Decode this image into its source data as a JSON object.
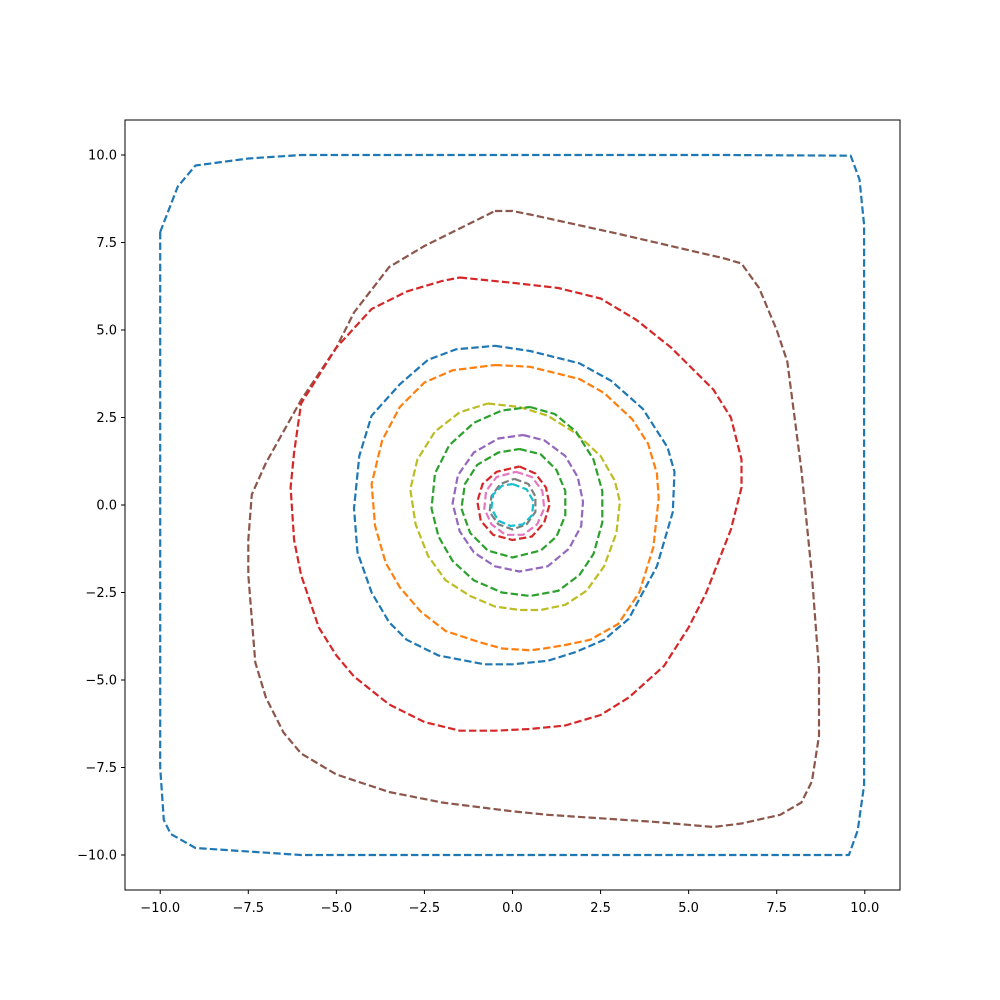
{
  "chart_data": {
    "type": "line",
    "title": "",
    "xlabel": "",
    "ylabel": "",
    "xlim": [
      -11,
      11
    ],
    "ylim": [
      -11,
      11
    ],
    "xticks": [
      -10,
      -7.5,
      -5,
      -2.5,
      0,
      2.5,
      5,
      7.5,
      10
    ],
    "yticks": [
      -10,
      -7.5,
      -5,
      -2.5,
      0,
      2.5,
      5,
      7.5,
      10
    ],
    "xtick_labels": [
      "−10.0",
      "−7.5",
      "−5.0",
      "−2.5",
      "0.0",
      "2.5",
      "5.0",
      "7.5",
      "10.0"
    ],
    "ytick_labels": [
      "−10.0",
      "−7.5",
      "−5.0",
      "−2.5",
      "0.0",
      "2.5",
      "5.0",
      "7.5",
      "10.0"
    ],
    "grid": false,
    "legend": "none",
    "line_style": "dashed",
    "series": [
      {
        "color": "#1f77b4",
        "points": [
          [
            -10,
            7.8
          ],
          [
            -9.5,
            9.1
          ],
          [
            -9.0,
            9.7
          ],
          [
            -7.5,
            9.9
          ],
          [
            -6.0,
            10.0
          ],
          [
            0,
            10.0
          ],
          [
            6.0,
            10.0
          ],
          [
            9.6,
            9.98
          ],
          [
            9.85,
            9.3
          ],
          [
            9.98,
            8.0
          ],
          [
            9.98,
            0
          ],
          [
            9.98,
            -8.0
          ],
          [
            9.8,
            -9.3
          ],
          [
            9.55,
            -10.0
          ],
          [
            6.0,
            -10.0
          ],
          [
            0,
            -10.0
          ],
          [
            -6.0,
            -10.0
          ],
          [
            -9.0,
            -9.8
          ],
          [
            -9.7,
            -9.4
          ],
          [
            -9.9,
            -9.0
          ],
          [
            -10,
            -7.5
          ],
          [
            -10,
            0
          ],
          [
            -10,
            7.8
          ]
        ]
      },
      {
        "color": "#8c564b",
        "points": [
          [
            -0.5,
            8.4
          ],
          [
            0,
            8.4
          ],
          [
            0.5,
            8.3
          ],
          [
            3,
            7.75
          ],
          [
            6,
            7.05
          ],
          [
            6.5,
            6.9
          ],
          [
            7,
            6.2
          ],
          [
            7.5,
            5
          ],
          [
            7.8,
            4.1
          ],
          [
            8.2,
            1
          ],
          [
            8.5,
            -2
          ],
          [
            8.7,
            -4.7
          ],
          [
            8.7,
            -6.6
          ],
          [
            8.5,
            -7.9
          ],
          [
            8.2,
            -8.5
          ],
          [
            7.6,
            -8.85
          ],
          [
            6.5,
            -9.1
          ],
          [
            5.7,
            -9.2
          ],
          [
            4,
            -9.05
          ],
          [
            1,
            -8.85
          ],
          [
            0,
            -8.75
          ],
          [
            -2,
            -8.5
          ],
          [
            -3.5,
            -8.2
          ],
          [
            -5,
            -7.7
          ],
          [
            -6,
            -7.1
          ],
          [
            -6.5,
            -6.5
          ],
          [
            -7,
            -5.5
          ],
          [
            -7.3,
            -4.5
          ],
          [
            -7.5,
            -2
          ],
          [
            -7.5,
            -1
          ],
          [
            -7.4,
            0.3
          ],
          [
            -7,
            1.2
          ],
          [
            -6,
            3
          ],
          [
            -5.0,
            4.5
          ],
          [
            -4.5,
            5.5
          ],
          [
            -3.5,
            6.8
          ],
          [
            -2.5,
            7.4
          ],
          [
            -1.5,
            7.9
          ],
          [
            -0.5,
            8.4
          ]
        ]
      },
      {
        "color": "#d62728",
        "points": [
          [
            -1.5,
            6.5
          ],
          [
            0,
            6.35
          ],
          [
            1.3,
            6.2
          ],
          [
            2.5,
            5.9
          ],
          [
            3.5,
            5.3
          ],
          [
            4.5,
            4.5
          ],
          [
            5.7,
            3.3
          ],
          [
            6.2,
            2.5
          ],
          [
            6.5,
            1.3
          ],
          [
            6.5,
            0.5
          ],
          [
            6.2,
            -0.7
          ],
          [
            5.5,
            -2.5
          ],
          [
            5,
            -3.5
          ],
          [
            4.3,
            -4.6
          ],
          [
            3.3,
            -5.5
          ],
          [
            2.5,
            -6
          ],
          [
            1.5,
            -6.3
          ],
          [
            0.5,
            -6.4
          ],
          [
            -0.5,
            -6.45
          ],
          [
            -1.5,
            -6.45
          ],
          [
            -2.5,
            -6.2
          ],
          [
            -3.5,
            -5.7
          ],
          [
            -4.5,
            -4.9
          ],
          [
            -5.0,
            -4.3
          ],
          [
            -5.5,
            -3.5
          ],
          [
            -6.0,
            -2.0
          ],
          [
            -6.2,
            -1.0
          ],
          [
            -6.3,
            0.5
          ],
          [
            -6.2,
            1.5
          ],
          [
            -6.0,
            2.9
          ],
          [
            -5.5,
            3.7
          ],
          [
            -5.0,
            4.5
          ],
          [
            -4.0,
            5.6
          ],
          [
            -3.0,
            6.1
          ],
          [
            -2.0,
            6.4
          ],
          [
            -1.5,
            6.5
          ]
        ]
      },
      {
        "color": "#1f77b4",
        "points": [
          [
            -0.5,
            4.55
          ],
          [
            0.5,
            4.4
          ],
          [
            1.9,
            4.05
          ],
          [
            2.8,
            3.55
          ],
          [
            3.7,
            2.75
          ],
          [
            4.4,
            1.65
          ],
          [
            4.6,
            0.95
          ],
          [
            4.55,
            -0.2
          ],
          [
            4.1,
            -1.75
          ],
          [
            3.3,
            -3.25
          ],
          [
            2.6,
            -3.85
          ],
          [
            1.8,
            -4.2
          ],
          [
            1.0,
            -4.45
          ],
          [
            0,
            -4.55
          ],
          [
            -0.8,
            -4.55
          ],
          [
            -2.1,
            -4.3
          ],
          [
            -3.0,
            -3.85
          ],
          [
            -3.5,
            -3.35
          ],
          [
            -4.0,
            -2.5
          ],
          [
            -4.4,
            -1.35
          ],
          [
            -4.5,
            -0.1
          ],
          [
            -4.35,
            1.4
          ],
          [
            -4.0,
            2.55
          ],
          [
            -3.2,
            3.45
          ],
          [
            -2.4,
            4.15
          ],
          [
            -1.6,
            4.45
          ],
          [
            -0.5,
            4.55
          ]
        ]
      },
      {
        "color": "#ff7f0e",
        "points": [
          [
            -0.5,
            4.0
          ],
          [
            0.5,
            3.95
          ],
          [
            1.9,
            3.6
          ],
          [
            2.6,
            3.2
          ],
          [
            3.4,
            2.45
          ],
          [
            3.85,
            1.75
          ],
          [
            4.1,
            0.9
          ],
          [
            4.15,
            0.2
          ],
          [
            4.0,
            -1.2
          ],
          [
            3.6,
            -2.5
          ],
          [
            3.0,
            -3.4
          ],
          [
            2.2,
            -3.85
          ],
          [
            1.5,
            -4.0
          ],
          [
            0.9,
            -4.1
          ],
          [
            0.5,
            -4.15
          ],
          [
            -0.3,
            -4.1
          ],
          [
            -1.0,
            -3.9
          ],
          [
            -1.9,
            -3.6
          ],
          [
            -2.6,
            -3.05
          ],
          [
            -3.2,
            -2.35
          ],
          [
            -3.6,
            -1.65
          ],
          [
            -3.9,
            -0.6
          ],
          [
            -4.0,
            0.6
          ],
          [
            -3.7,
            1.85
          ],
          [
            -3.2,
            2.8
          ],
          [
            -2.5,
            3.5
          ],
          [
            -1.7,
            3.85
          ],
          [
            -0.5,
            4.0
          ]
        ]
      },
      {
        "color": "#bcbd22",
        "points": [
          [
            -0.7,
            2.9
          ],
          [
            0.2,
            2.8
          ],
          [
            1.0,
            2.55
          ],
          [
            1.8,
            2.05
          ],
          [
            2.5,
            1.4
          ],
          [
            2.9,
            0.7
          ],
          [
            3.05,
            0.1
          ],
          [
            2.95,
            -0.8
          ],
          [
            2.6,
            -1.75
          ],
          [
            2.1,
            -2.45
          ],
          [
            1.5,
            -2.85
          ],
          [
            0.8,
            -3.0
          ],
          [
            0.2,
            -3.0
          ],
          [
            -0.5,
            -2.9
          ],
          [
            -1.2,
            -2.6
          ],
          [
            -1.9,
            -2.15
          ],
          [
            -2.4,
            -1.45
          ],
          [
            -2.75,
            -0.55
          ],
          [
            -2.9,
            0.45
          ],
          [
            -2.7,
            1.3
          ],
          [
            -2.2,
            2.1
          ],
          [
            -1.5,
            2.65
          ],
          [
            -0.7,
            2.9
          ]
        ]
      },
      {
        "color": "#2ca02c",
        "points": [
          [
            0.5,
            2.8
          ],
          [
            1.2,
            2.6
          ],
          [
            1.8,
            2.1
          ],
          [
            2.3,
            1.3
          ],
          [
            2.55,
            0.4
          ],
          [
            2.55,
            -0.5
          ],
          [
            2.3,
            -1.4
          ],
          [
            1.9,
            -2.0
          ],
          [
            1.3,
            -2.45
          ],
          [
            0.5,
            -2.6
          ],
          [
            -0.3,
            -2.5
          ],
          [
            -1.1,
            -2.15
          ],
          [
            -1.7,
            -1.6
          ],
          [
            -2.1,
            -0.9
          ],
          [
            -2.3,
            -0.1
          ],
          [
            -2.2,
            0.9
          ],
          [
            -1.8,
            1.7
          ],
          [
            -1.1,
            2.35
          ],
          [
            -0.3,
            2.7
          ],
          [
            0.5,
            2.8
          ]
        ]
      },
      {
        "color": "#9467bd",
        "points": [
          [
            0.3,
            2.0
          ],
          [
            0.9,
            1.85
          ],
          [
            1.5,
            1.4
          ],
          [
            1.85,
            0.8
          ],
          [
            2.0,
            0.1
          ],
          [
            1.95,
            -0.6
          ],
          [
            1.6,
            -1.25
          ],
          [
            1.0,
            -1.75
          ],
          [
            0.2,
            -1.9
          ],
          [
            -0.5,
            -1.75
          ],
          [
            -1.1,
            -1.35
          ],
          [
            -1.5,
            -0.75
          ],
          [
            -1.7,
            0.05
          ],
          [
            -1.55,
            0.85
          ],
          [
            -1.1,
            1.5
          ],
          [
            -0.4,
            1.9
          ],
          [
            0.3,
            2.0
          ]
        ]
      },
      {
        "color": "#2ca02c",
        "points": [
          [
            0.2,
            1.6
          ],
          [
            0.8,
            1.45
          ],
          [
            1.25,
            1.0
          ],
          [
            1.5,
            0.4
          ],
          [
            1.5,
            -0.3
          ],
          [
            1.25,
            -0.9
          ],
          [
            0.8,
            -1.3
          ],
          [
            0.0,
            -1.5
          ],
          [
            -0.7,
            -1.3
          ],
          [
            -1.2,
            -0.8
          ],
          [
            -1.45,
            -0.1
          ],
          [
            -1.35,
            0.6
          ],
          [
            -1.0,
            1.15
          ],
          [
            -0.4,
            1.5
          ],
          [
            0.2,
            1.6
          ]
        ]
      },
      {
        "color": "#d62728",
        "points": [
          [
            0.2,
            1.1
          ],
          [
            0.65,
            0.9
          ],
          [
            0.95,
            0.5
          ],
          [
            1.05,
            0.0
          ],
          [
            0.9,
            -0.5
          ],
          [
            0.55,
            -0.9
          ],
          [
            0.0,
            -1.0
          ],
          [
            -0.55,
            -0.85
          ],
          [
            -0.9,
            -0.45
          ],
          [
            -1.0,
            0.1
          ],
          [
            -0.85,
            0.6
          ],
          [
            -0.45,
            0.95
          ],
          [
            0.2,
            1.1
          ]
        ]
      },
      {
        "color": "#e377c2",
        "points": [
          [
            0.1,
            0.95
          ],
          [
            0.55,
            0.8
          ],
          [
            0.85,
            0.4
          ],
          [
            0.9,
            -0.1
          ],
          [
            0.7,
            -0.55
          ],
          [
            0.3,
            -0.85
          ],
          [
            -0.2,
            -0.85
          ],
          [
            -0.6,
            -0.55
          ],
          [
            -0.8,
            -0.1
          ],
          [
            -0.75,
            0.4
          ],
          [
            -0.45,
            0.8
          ],
          [
            0.1,
            0.95
          ]
        ]
      },
      {
        "color": "#7f7f7f",
        "points": [
          [
            0.05,
            0.75
          ],
          [
            0.45,
            0.6
          ],
          [
            0.65,
            0.25
          ],
          [
            0.65,
            -0.2
          ],
          [
            0.4,
            -0.55
          ],
          [
            0.0,
            -0.7
          ],
          [
            -0.4,
            -0.55
          ],
          [
            -0.65,
            -0.2
          ],
          [
            -0.6,
            0.25
          ],
          [
            -0.35,
            0.6
          ],
          [
            0.05,
            0.75
          ]
        ]
      },
      {
        "color": "#17becf",
        "points": [
          [
            0.0,
            0.6
          ],
          [
            0.4,
            0.45
          ],
          [
            0.6,
            0.1
          ],
          [
            0.55,
            -0.3
          ],
          [
            0.3,
            -0.55
          ],
          [
            -0.05,
            -0.6
          ],
          [
            -0.4,
            -0.45
          ],
          [
            -0.6,
            -0.1
          ],
          [
            -0.55,
            0.3
          ],
          [
            -0.3,
            0.55
          ],
          [
            0.0,
            0.6
          ]
        ]
      }
    ]
  }
}
